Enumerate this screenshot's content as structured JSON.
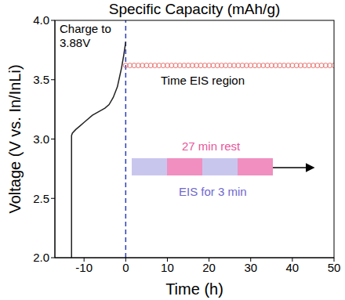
{
  "chart_data": {
    "type": "line",
    "top_axis_label": "Specific Capacity (mAh/g)",
    "x_label": "Time (h)",
    "y_label": "Voltage (V vs. In/InLi)",
    "xlim": [
      -17,
      50
    ],
    "xticks": [
      -10,
      0,
      10,
      20,
      30,
      40,
      50
    ],
    "ylim": [
      2,
      4
    ],
    "yticks": [
      {
        "value": 2,
        "label": "2.0"
      },
      {
        "value": 2.5,
        "label": "2.5"
      },
      {
        "value": 3,
        "label": "3.0"
      },
      {
        "value": 3.5,
        "label": "3.5"
      },
      {
        "value": 4,
        "label": "4.0"
      }
    ],
    "grid": false,
    "vlines": [
      {
        "x": 0,
        "color": "#2b3fb8",
        "line_style": "dashed"
      }
    ],
    "annotations": {
      "charge": [
        "Charge to",
        "3.88V"
      ],
      "region": "Time EIS region",
      "rest": "27 min rest",
      "eis": "EIS for 3 min"
    },
    "series": [
      {
        "color": "#222222",
        "marker": "none",
        "line_style": "solid",
        "x": [
          -13,
          -13,
          -12.8,
          -12,
          -11,
          -10,
          -8,
          -6,
          -5,
          -4,
          -3,
          -2,
          -1.5,
          -1,
          -0.5,
          0
        ],
        "values": [
          2.0,
          3.03,
          3.05,
          3.08,
          3.11,
          3.14,
          3.2,
          3.24,
          3.26,
          3.29,
          3.35,
          3.44,
          3.52,
          3.6,
          3.7,
          3.82
        ]
      },
      {
        "color": "#e8736f",
        "marker": "circle",
        "line_style": "none",
        "x": [
          0,
          1,
          2,
          3,
          4,
          5,
          6,
          7,
          8,
          9,
          10,
          11,
          12,
          13,
          14,
          15,
          16,
          17,
          18,
          19,
          20,
          21,
          22,
          23,
          24,
          25,
          26,
          27,
          28,
          29,
          30,
          31,
          32,
          33,
          34,
          35,
          36,
          37,
          38,
          39,
          40,
          41,
          42,
          43,
          44,
          45,
          46,
          47,
          48,
          49,
          50
        ],
        "values": [
          3.62,
          3.62,
          3.62,
          3.62,
          3.62,
          3.62,
          3.62,
          3.62,
          3.62,
          3.62,
          3.62,
          3.62,
          3.62,
          3.62,
          3.62,
          3.62,
          3.62,
          3.62,
          3.62,
          3.62,
          3.62,
          3.62,
          3.62,
          3.62,
          3.62,
          3.62,
          3.62,
          3.62,
          3.62,
          3.62,
          3.62,
          3.62,
          3.62,
          3.62,
          3.62,
          3.62,
          3.62,
          3.62,
          3.62,
          3.62,
          3.62,
          3.62,
          3.62,
          3.62,
          3.62,
          3.62,
          3.62,
          3.62,
          3.62,
          3.62,
          3.62
        ]
      }
    ]
  }
}
